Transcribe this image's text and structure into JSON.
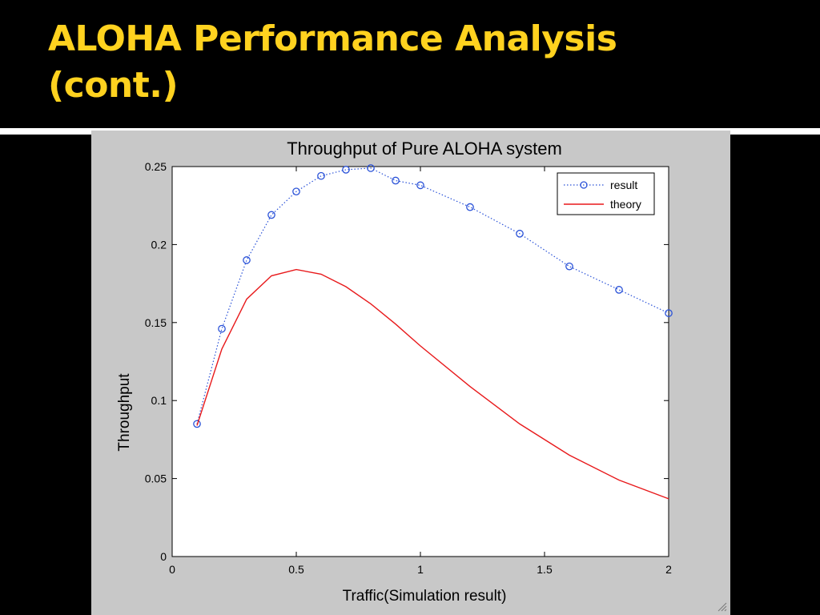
{
  "slide": {
    "title_line1": "ALOHA Performance Analysis",
    "title_line2": "(cont.)"
  },
  "colors": {
    "title": "#ffd21f",
    "result_series": "#2a52d8",
    "theory_series": "#e8191b",
    "figure_background": "#c8c8c8"
  },
  "chart_data": {
    "type": "line",
    "title": "Throughput of Pure ALOHA system",
    "xlabel": "Traffic(Simulation result)",
    "ylabel": "Throughput",
    "xlim": [
      0,
      2
    ],
    "ylim": [
      0,
      0.25
    ],
    "xticks": [
      0,
      0.5,
      1,
      1.5,
      2
    ],
    "xtick_labels": [
      "0",
      "0.5",
      "1",
      "1.5",
      "2"
    ],
    "yticks": [
      0,
      0.05,
      0.1,
      0.15,
      0.2,
      0.25
    ],
    "ytick_labels": [
      "0",
      "0.05",
      "0.1",
      "0.15",
      "0.2",
      "0.25"
    ],
    "grid": false,
    "legend_position": "top-right",
    "series": [
      {
        "name": "result",
        "style": "dotted",
        "marker": "circle",
        "color": "#2a52d8",
        "points": [
          [
            0.1,
            0.085
          ],
          [
            0.2,
            0.146
          ],
          [
            0.3,
            0.19
          ],
          [
            0.4,
            0.219
          ],
          [
            0.5,
            0.234
          ],
          [
            0.6,
            0.244
          ],
          [
            0.7,
            0.248
          ],
          [
            0.8,
            0.249
          ],
          [
            0.9,
            0.241
          ],
          [
            1.0,
            0.238
          ],
          [
            1.2,
            0.224
          ],
          [
            1.4,
            0.207
          ],
          [
            1.6,
            0.186
          ],
          [
            1.8,
            0.171
          ],
          [
            2.0,
            0.156
          ]
        ]
      },
      {
        "name": "theory",
        "style": "solid",
        "marker": "none",
        "color": "#e8191b",
        "points": [
          [
            0.1,
            0.084
          ],
          [
            0.2,
            0.133
          ],
          [
            0.3,
            0.165
          ],
          [
            0.4,
            0.18
          ],
          [
            0.5,
            0.184
          ],
          [
            0.6,
            0.181
          ],
          [
            0.7,
            0.173
          ],
          [
            0.8,
            0.162
          ],
          [
            0.9,
            0.149
          ],
          [
            1.0,
            0.135
          ],
          [
            1.2,
            0.109
          ],
          [
            1.4,
            0.085
          ],
          [
            1.6,
            0.065
          ],
          [
            1.8,
            0.049
          ],
          [
            2.0,
            0.037
          ]
        ]
      }
    ]
  }
}
